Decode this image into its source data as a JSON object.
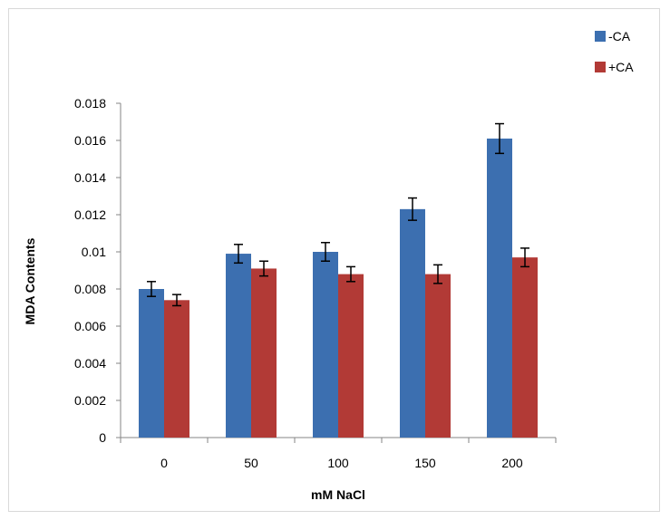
{
  "chart_data": {
    "type": "bar",
    "title": "",
    "xlabel": "mM NaCl",
    "ylabel": "MDA Contents",
    "categories": [
      "0",
      "50",
      "100",
      "150",
      "200"
    ],
    "ylim": [
      0,
      0.018
    ],
    "yticks": [
      "0",
      "0.002",
      "0.004",
      "0.006",
      "0.008",
      "0.01",
      "0.012",
      "0.014",
      "0.016",
      "0.018"
    ],
    "grid": false,
    "legend_position": "top-right",
    "error_bars": true,
    "series": [
      {
        "name": "-CA",
        "color": "#3c6fb0",
        "values": [
          0.008,
          0.0099,
          0.01,
          0.0123,
          0.0161
        ],
        "errors": [
          0.0004,
          0.0005,
          0.0005,
          0.0006,
          0.0008
        ]
      },
      {
        "name": "+CA",
        "color": "#b23a36",
        "values": [
          0.0074,
          0.0091,
          0.0088,
          0.0088,
          0.0097
        ],
        "errors": [
          0.0003,
          0.0004,
          0.0004,
          0.0005,
          0.0005
        ]
      }
    ]
  }
}
